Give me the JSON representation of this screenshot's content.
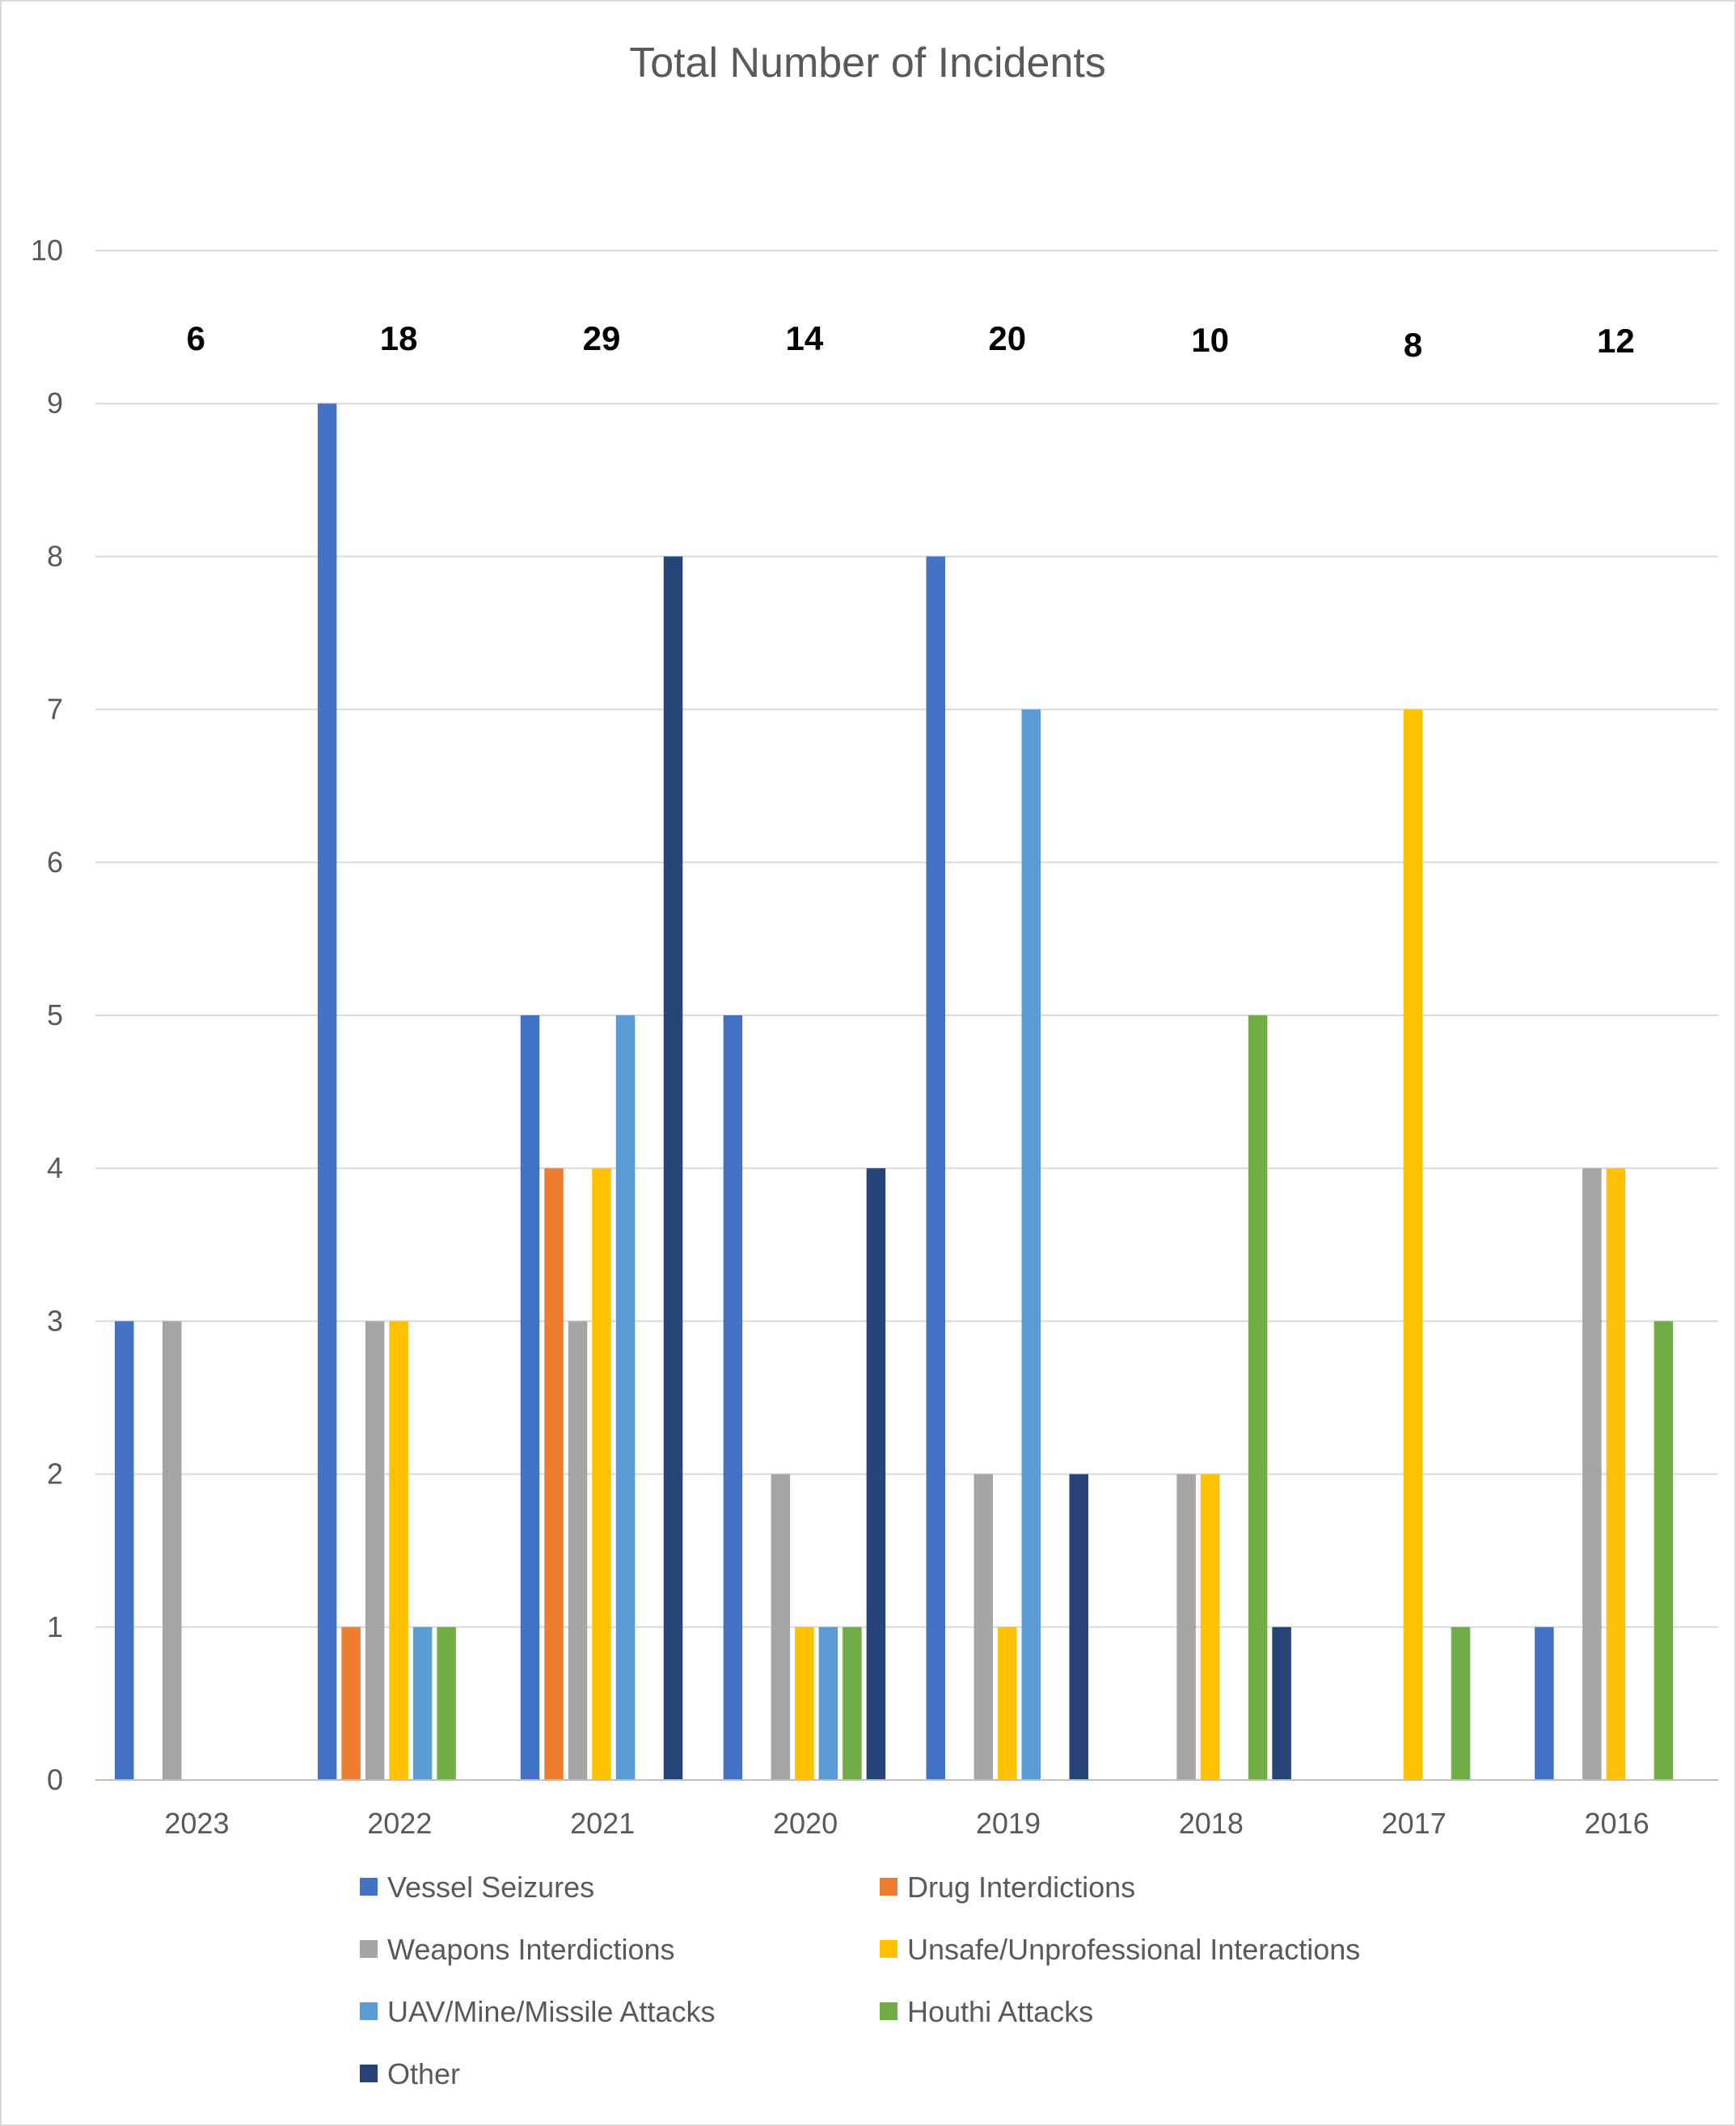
{
  "chart_data": {
    "type": "bar",
    "title": "Total Number of Incidents",
    "xlabel": "",
    "ylabel": "",
    "ylim": [
      0,
      10
    ],
    "yticks": [
      "0",
      "1",
      "2",
      "3",
      "4",
      "5",
      "6",
      "7",
      "8",
      "9",
      "10"
    ],
    "grid": true,
    "legend_position": "bottom",
    "categories": [
      "2023",
      "2022",
      "2021",
      "2020",
      "2019",
      "2018",
      "2017",
      "2016"
    ],
    "totals": [
      "6",
      "18",
      "29",
      "14",
      "20",
      "10",
      "8",
      "12"
    ],
    "series": [
      {
        "name": "Vessel Seizures",
        "color": "#4472c4",
        "values": [
          3,
          9,
          5,
          5,
          8,
          0,
          0,
          1
        ]
      },
      {
        "name": "Drug Interdictions",
        "color": "#ed7d31",
        "values": [
          0,
          1,
          4,
          0,
          0,
          0,
          0,
          0
        ]
      },
      {
        "name": "Weapons Interdictions",
        "color": "#a5a5a5",
        "values": [
          3,
          3,
          3,
          2,
          2,
          2,
          0,
          4
        ]
      },
      {
        "name": "Unsafe/Unprofessional Interactions",
        "color": "#ffc000",
        "values": [
          0,
          3,
          4,
          1,
          1,
          2,
          7,
          4
        ]
      },
      {
        "name": "UAV/Mine/Missile Attacks",
        "color": "#5b9bd5",
        "values": [
          0,
          1,
          5,
          1,
          7,
          0,
          0,
          0
        ]
      },
      {
        "name": "Houthi Attacks",
        "color": "#70ad47",
        "values": [
          0,
          1,
          0,
          1,
          0,
          5,
          1,
          3
        ]
      },
      {
        "name": "Other",
        "color": "#264478",
        "values": [
          0,
          0,
          8,
          4,
          2,
          1,
          0,
          0
        ]
      }
    ]
  }
}
